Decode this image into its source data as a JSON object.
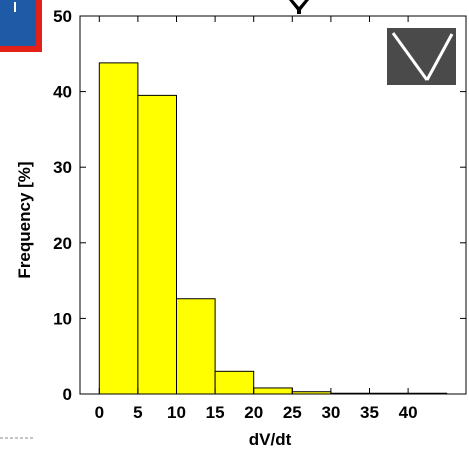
{
  "chart_data": {
    "type": "bar",
    "title": "",
    "xlabel": "dV/dt",
    "ylabel": "Frequency [%]",
    "x_ticks": [
      0,
      5,
      10,
      15,
      20,
      25,
      30,
      35,
      40
    ],
    "y_ticks": [
      0,
      10,
      20,
      30,
      40,
      50
    ],
    "xlim": [
      -2.5,
      47.5
    ],
    "ylim": [
      0,
      50
    ],
    "bin_width": 5,
    "bins": [
      {
        "x": 2.5,
        "value": 43.8
      },
      {
        "x": 7.5,
        "value": 39.5
      },
      {
        "x": 12.5,
        "value": 12.6
      },
      {
        "x": 17.5,
        "value": 3.0
      },
      {
        "x": 22.5,
        "value": 0.8
      },
      {
        "x": 27.5,
        "value": 0.3
      },
      {
        "x": 32.5,
        "value": 0.1
      },
      {
        "x": 37.5,
        "value": 0.1
      },
      {
        "x": 42.5,
        "value": 0.1
      }
    ],
    "bar_color": "#ffff00",
    "grid": false
  },
  "decorations": {
    "logo_icon": "triangle-v-logo",
    "corner_badge_colors": {
      "fill": "#1f5aa6",
      "border": "#e32119"
    }
  }
}
